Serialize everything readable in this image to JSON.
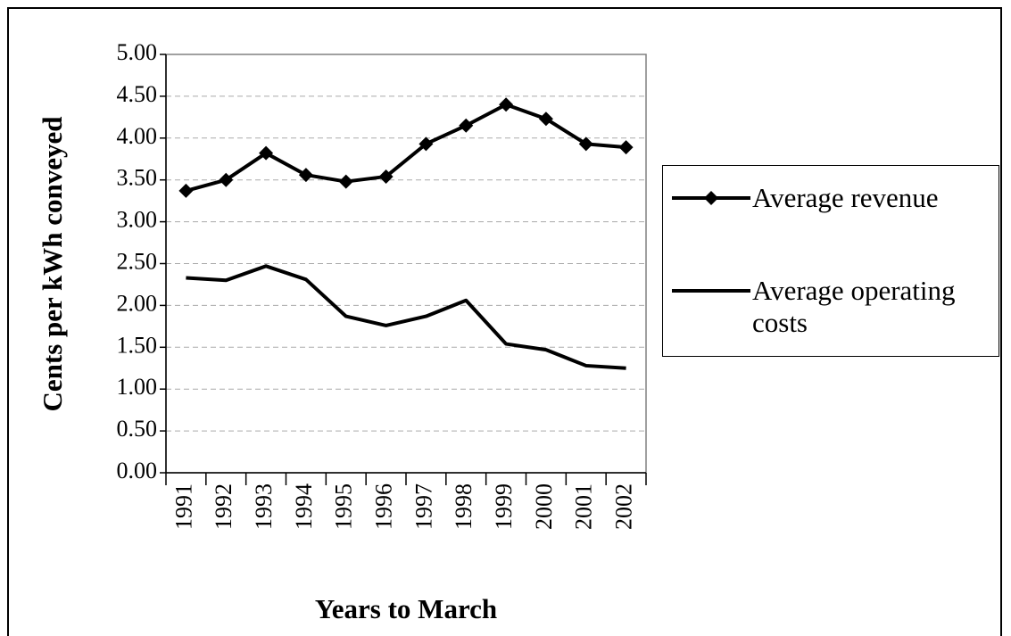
{
  "chart_data": {
    "type": "line",
    "x_label": "Years to March",
    "y_label": "Cents per kWh conveyed",
    "categories": [
      "1991",
      "1992",
      "1993",
      "1994",
      "1995",
      "1996",
      "1997",
      "1998",
      "1999",
      "2000",
      "2001",
      "2002"
    ],
    "series": [
      {
        "name": "Average revenue",
        "color": "#000000",
        "marker": "diamond",
        "values": [
          3.37,
          3.5,
          3.82,
          3.56,
          3.48,
          3.54,
          3.93,
          4.15,
          4.4,
          4.23,
          3.93,
          3.89
        ]
      },
      {
        "name": "Average operating costs",
        "color": "#000000",
        "values": [
          2.33,
          2.3,
          2.47,
          2.31,
          1.87,
          1.76,
          1.87,
          2.06,
          1.54,
          1.47,
          1.28,
          1.25
        ]
      }
    ],
    "ylim": [
      0,
      5
    ],
    "yticks": [
      {
        "value": 0,
        "label": "0.00"
      },
      {
        "value": 0.5,
        "label": "0.50"
      },
      {
        "value": 1,
        "label": "1.00"
      },
      {
        "value": 1.5,
        "label": "1.50"
      },
      {
        "value": 2,
        "label": "2.00"
      },
      {
        "value": 2.5,
        "label": "2.50"
      },
      {
        "value": 3,
        "label": "3.00"
      },
      {
        "value": 3.5,
        "label": "3.50"
      },
      {
        "value": 4,
        "label": "4.00"
      },
      {
        "value": 4.5,
        "label": "4.50"
      },
      {
        "value": 5,
        "label": "5.00"
      }
    ],
    "grid": true,
    "legend": "right"
  }
}
